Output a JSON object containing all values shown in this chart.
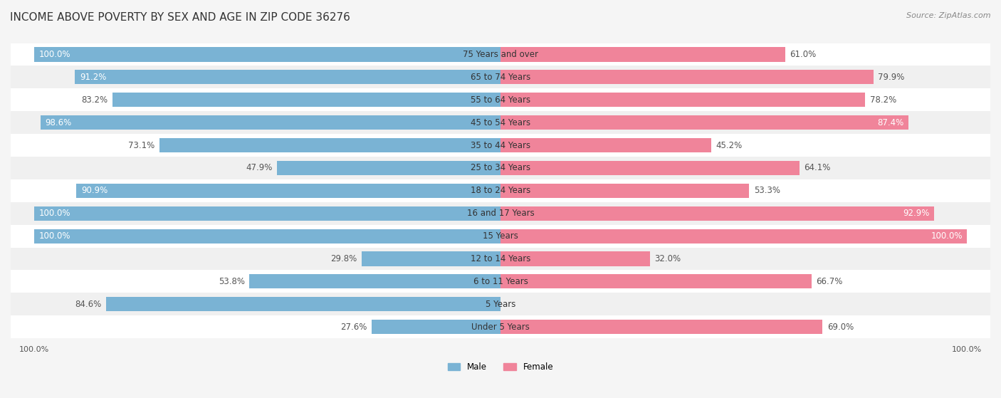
{
  "title": "INCOME ABOVE POVERTY BY SEX AND AGE IN ZIP CODE 36276",
  "source": "Source: ZipAtlas.com",
  "categories": [
    "Under 5 Years",
    "5 Years",
    "6 to 11 Years",
    "12 to 14 Years",
    "15 Years",
    "16 and 17 Years",
    "18 to 24 Years",
    "25 to 34 Years",
    "35 to 44 Years",
    "45 to 54 Years",
    "55 to 64 Years",
    "65 to 74 Years",
    "75 Years and over"
  ],
  "male_values": [
    27.6,
    84.6,
    53.8,
    29.8,
    100.0,
    100.0,
    90.9,
    47.9,
    73.1,
    98.6,
    83.2,
    91.2,
    100.0
  ],
  "female_values": [
    69.0,
    0.0,
    66.7,
    32.0,
    100.0,
    92.9,
    53.3,
    64.1,
    45.2,
    87.4,
    78.2,
    79.9,
    61.0
  ],
  "male_color": "#7ab3d4",
  "female_color": "#f0849a",
  "background_color": "#f5f5f5",
  "bar_background": "#e8e8e8",
  "bar_height": 0.35,
  "xlim": [
    0,
    100
  ],
  "title_fontsize": 11,
  "label_fontsize": 8.5,
  "tick_fontsize": 8,
  "source_fontsize": 8
}
